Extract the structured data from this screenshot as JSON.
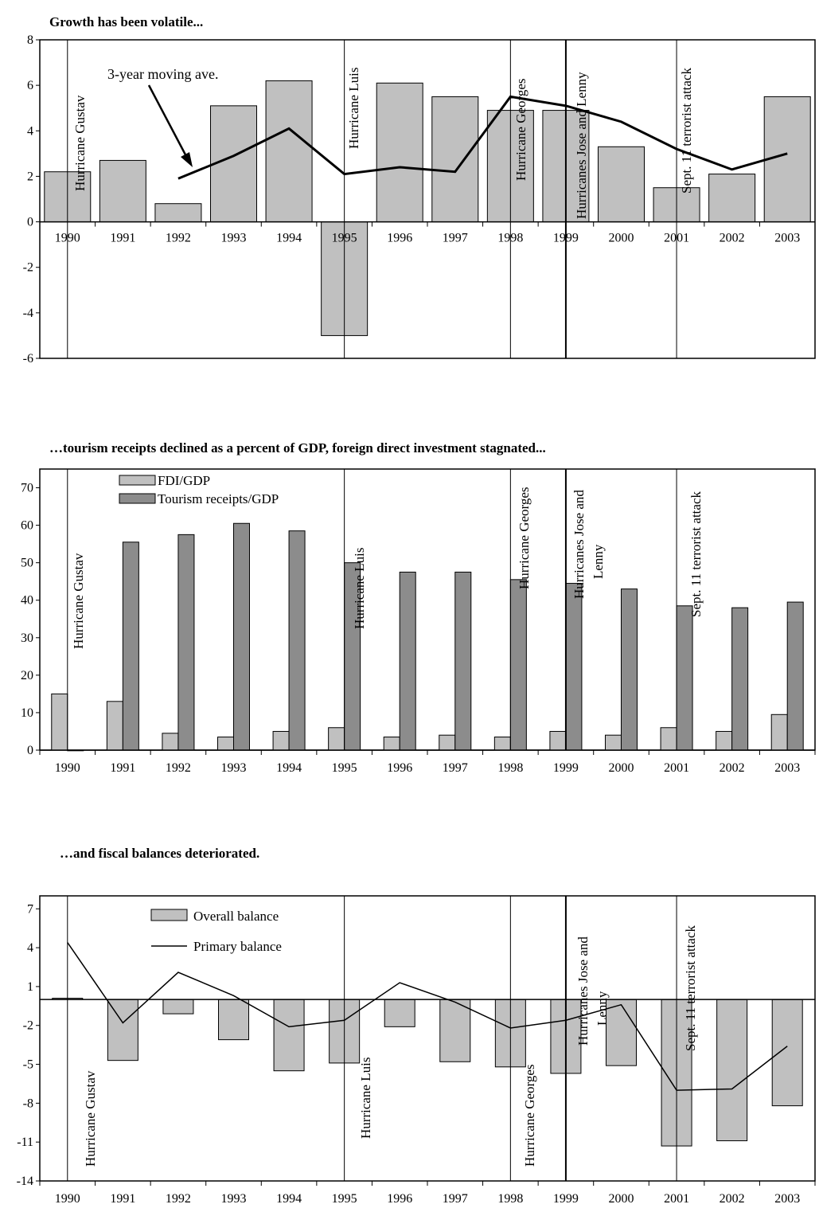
{
  "chart_data": [
    {
      "type": "bar",
      "title": "Growth has been volatile...",
      "categories": [
        "1990",
        "1991",
        "1992",
        "1993",
        "1994",
        "1995",
        "1996",
        "1997",
        "1998",
        "1999",
        "2000",
        "2001",
        "2002",
        "2003"
      ],
      "ylim": [
        -6,
        8
      ],
      "yticks": [
        -6,
        -4,
        -2,
        0,
        2,
        4,
        6,
        8
      ],
      "series": [
        {
          "type": "bar",
          "color": "#c0c0c0",
          "values": [
            2.2,
            2.7,
            0.8,
            5.1,
            6.2,
            -5.0,
            6.1,
            5.5,
            4.9,
            4.9,
            3.3,
            1.5,
            2.1,
            5.5
          ]
        },
        {
          "type": "line",
          "color": "#000000",
          "values": [
            null,
            null,
            1.9,
            2.9,
            4.1,
            2.1,
            2.4,
            2.2,
            5.5,
            5.1,
            4.4,
            3.2,
            2.3,
            3.0
          ]
        }
      ],
      "annotation": "3-year moving ave.",
      "events": [
        {
          "year": "1990",
          "label": "Hurricane Gustav"
        },
        {
          "year": "1995",
          "label": "Hurricane Luis"
        },
        {
          "year": "1998",
          "label": "Hurricane Georges"
        },
        {
          "year": "1999",
          "label": "Hurricanes Jose and Lenny"
        },
        {
          "year": "2001",
          "label": "Sept. 11 terrorist attack"
        }
      ]
    },
    {
      "type": "bar",
      "title": "…tourism receipts declined as a percent of GDP, foreign direct investment stagnated...",
      "categories": [
        "1990",
        "1991",
        "1992",
        "1993",
        "1994",
        "1995",
        "1996",
        "1997",
        "1998",
        "1999",
        "2000",
        "2001",
        "2002",
        "2003"
      ],
      "ylim": [
        0,
        75
      ],
      "yticks": [
        0,
        10,
        20,
        30,
        40,
        50,
        60,
        70
      ],
      "legend_position": "top-left",
      "series": [
        {
          "name": "FDI/GDP",
          "type": "bar",
          "color": "#c0c0c0",
          "values": [
            15,
            13,
            4.5,
            3.5,
            5,
            6,
            3.5,
            4,
            3.5,
            5,
            4,
            6,
            5,
            9.5
          ]
        },
        {
          "name": "Tourism receipts/GDP",
          "type": "bar",
          "color": "#8c8c8c",
          "values": [
            0,
            55.5,
            57.5,
            60.5,
            58.5,
            50,
            47.5,
            47.5,
            45.5,
            44.5,
            43,
            38.5,
            38,
            39.5
          ]
        }
      ],
      "events": [
        {
          "year": "1990",
          "label": "Hurricane Gustav"
        },
        {
          "year": "1995",
          "label": "Hurricane Luis"
        },
        {
          "year": "1998",
          "label": "Hurricane Georges"
        },
        {
          "year": "1999",
          "label": "Hurricanes Jose and Lenny"
        },
        {
          "year": "2001",
          "label": "Sept. 11 terrorist attack"
        }
      ]
    },
    {
      "type": "bar",
      "title": "…and fiscal balances deteriorated.",
      "categories": [
        "1990",
        "1991",
        "1992",
        "1993",
        "1994",
        "1995",
        "1996",
        "1997",
        "1998",
        "1999",
        "2000",
        "2001",
        "2002",
        "2003"
      ],
      "ylim": [
        -14,
        8
      ],
      "yticks": [
        -14,
        -11,
        -8,
        -5,
        -2,
        1,
        4,
        7
      ],
      "legend_position": "top-center",
      "series": [
        {
          "name": "Overall balance",
          "type": "bar",
          "color": "#c0c0c0",
          "values": [
            0.1,
            -4.7,
            -1.1,
            -3.1,
            -5.5,
            -4.9,
            -2.1,
            -4.8,
            -5.2,
            -5.7,
            -5.1,
            -11.3,
            -10.9,
            -8.2
          ]
        },
        {
          "name": "Primary balance",
          "type": "line",
          "color": "#000000",
          "values": [
            4.4,
            -1.8,
            2.1,
            0.3,
            -2.1,
            -1.6,
            1.3,
            -0.2,
            -2.2,
            -1.6,
            -0.4,
            -7.0,
            -6.9,
            -3.6
          ]
        }
      ],
      "events": [
        {
          "year": "1990",
          "label": "Hurricane Gustav"
        },
        {
          "year": "1995",
          "label": "Hurricane Luis"
        },
        {
          "year": "1998",
          "label": "Hurricane Georges"
        },
        {
          "year": "1999",
          "label": "Hurricanes Jose and Lenny"
        },
        {
          "year": "2001",
          "label": "Sept. 11 terrorist attack"
        }
      ]
    }
  ]
}
